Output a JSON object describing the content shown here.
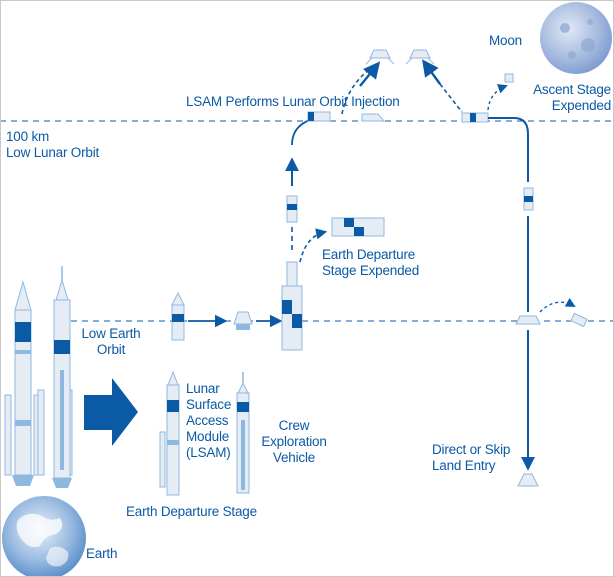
{
  "colors": {
    "primary": "#0b5aa6",
    "light_blue": "#8fb8e0",
    "rocket_body": "#e6ecf3",
    "earth": "#7fa8d6",
    "moon": "#a9bde0"
  },
  "labels": {
    "moon": "Moon",
    "lunar_orbit_injection": "LSAM Performs Lunar Orbit Injection",
    "ascent_stage_expended": "Ascent Stage\nExpended",
    "low_lunar_orbit": "100 km\nLow Lunar Orbit",
    "earth_departure_stage_expended": "Earth Departure\nStage Expended",
    "low_earth_orbit": "Low Earth\nOrbit",
    "lsam": "Lunar\nSurface\nAccess\nModule\n(LSAM)",
    "crew_exploration_vehicle": "Crew\nExploration\nVehicle",
    "earth_departure_stage": "Earth Departure Stage",
    "direct_or_skip_land_entry": "Direct or Skip\nLand Entry",
    "earth": "Earth"
  },
  "icons": [
    "moon-icon",
    "earth-icon",
    "heavy-lift-rocket-icon",
    "crew-launch-rocket-icon",
    "direction-arrow-icon",
    "earth-departure-stage-icon",
    "crew-exploration-vehicle-icon",
    "lsam-icon",
    "capsule-icon"
  ]
}
